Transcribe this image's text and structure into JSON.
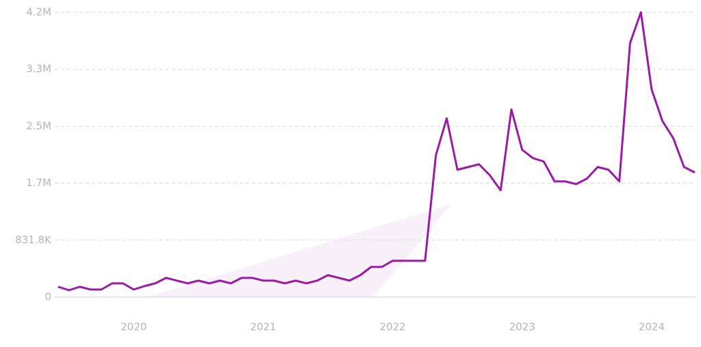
{
  "chart_data": {
    "type": "line",
    "categories": [
      null,
      null,
      null,
      null,
      null,
      null,
      null,
      "2020",
      null,
      null,
      null,
      null,
      null,
      null,
      null,
      null,
      null,
      null,
      null,
      "2021",
      null,
      null,
      null,
      null,
      null,
      null,
      null,
      null,
      null,
      null,
      null,
      "2022",
      null,
      null,
      null,
      null,
      null,
      null,
      null,
      null,
      null,
      null,
      null,
      "2023",
      null,
      null,
      null,
      null,
      null,
      null,
      null,
      null,
      null,
      null,
      null,
      "2024",
      null,
      null,
      null,
      null
    ],
    "series": [
      {
        "color": "#9a1aa6",
        "values": [
          150000,
          100000,
          150000,
          110000,
          110000,
          200000,
          200000,
          110000,
          160000,
          200000,
          280000,
          240000,
          200000,
          240000,
          200000,
          240000,
          200000,
          280000,
          280000,
          240000,
          240000,
          200000,
          240000,
          200000,
          240000,
          320000,
          280000,
          240000,
          320000,
          440000,
          440000,
          530000,
          530000,
          530000,
          530000,
          2070000,
          2610000,
          1860000,
          1900000,
          1940000,
          1780000,
          1560000,
          2740000,
          2150000,
          2030000,
          1980000,
          1690000,
          1690000,
          1650000,
          1730000,
          1900000,
          1860000,
          1690000,
          3710000,
          4160000,
          3030000,
          2570000,
          2320000,
          1900000,
          1820000
        ]
      }
    ],
    "ylim": [
      0,
      4159000
    ],
    "yticks": [
      0,
      {
        "value": 831800,
        "label": "831.8K"
      },
      {
        "value": 1663600,
        "label": "1.7M"
      },
      {
        "value": 2495400,
        "label": "2.5M"
      },
      {
        "value": 3327200,
        "label": "3.3M"
      },
      {
        "value": 4159000,
        "label": "4.2M"
      }
    ],
    "grid": true
  }
}
